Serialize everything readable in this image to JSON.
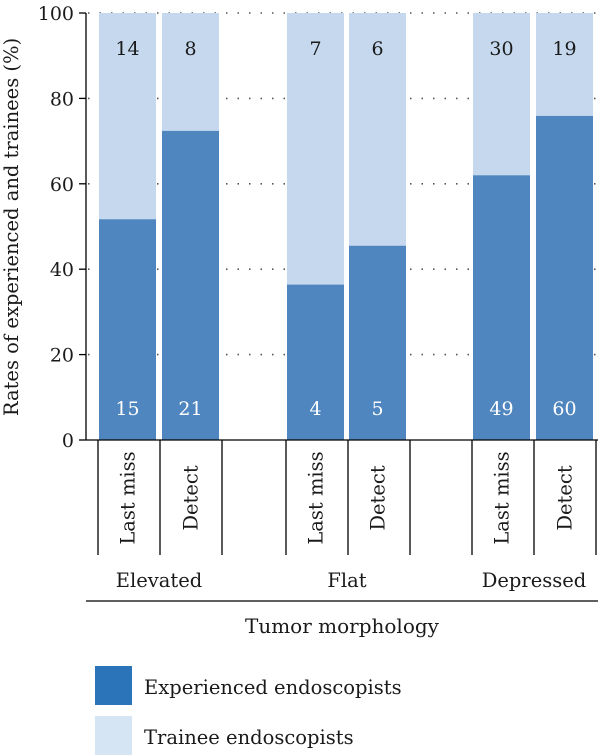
{
  "chart_data": {
    "type": "bar",
    "stacked": true,
    "ylabel": "Rates of experienced and trainees (%)",
    "xlabel": "Tumor morphology",
    "ylim": [
      0,
      100
    ],
    "yticks": [
      "0",
      "20",
      "40",
      "60",
      "80",
      "100"
    ],
    "grid": "dotted horizontal",
    "groups": [
      "Elevated",
      "Flat",
      "Depressed"
    ],
    "categories": [
      "Last miss",
      "Detect",
      "Last miss",
      "Detect",
      "Last miss",
      "Detect"
    ],
    "series": [
      {
        "name": "Experienced endoscopists",
        "color": "#4f86bf",
        "percent": [
          51.7,
          72.4,
          36.4,
          45.5,
          62.0,
          75.9
        ],
        "counts": [
          "15",
          "21",
          "4",
          "5",
          "49",
          "60"
        ]
      },
      {
        "name": "Trainee endoscopists",
        "color": "#c5d8ed",
        "percent": [
          48.3,
          27.6,
          63.6,
          54.5,
          38.0,
          24.1
        ],
        "counts": [
          "14",
          "8",
          "7",
          "6",
          "30",
          "19"
        ]
      }
    ],
    "legend": {
      "position": "bottom-left",
      "items": [
        {
          "label": "Experienced endoscopists",
          "color": "#2b74b9"
        },
        {
          "label": "Trainee endoscopists",
          "color": "#d6e5f4"
        }
      ]
    }
  }
}
